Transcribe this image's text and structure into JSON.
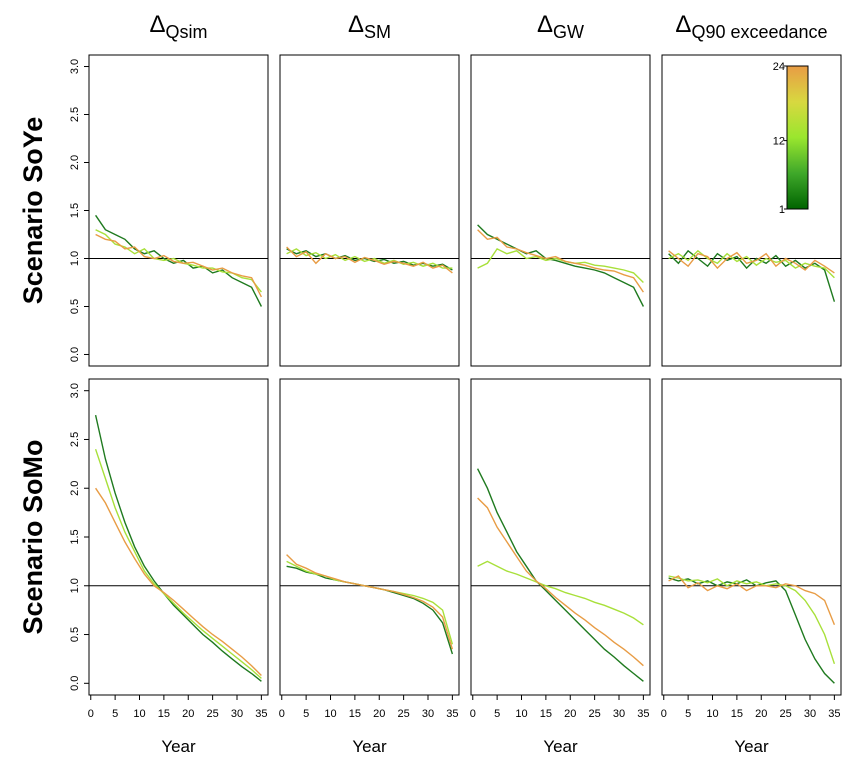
{
  "chart_data": [
    {
      "type": "line",
      "title": "Δ",
      "title_sub": "Qsim",
      "ylabel": "Scenario SoYe",
      "x": [
        1,
        3,
        5,
        7,
        9,
        11,
        13,
        15,
        17,
        19,
        21,
        23,
        25,
        27,
        29,
        31,
        33,
        35
      ],
      "xlim": [
        -0.36,
        36.36
      ],
      "ylim": [
        -0.12,
        3.12
      ],
      "yticks": [
        {
          "value": 0,
          "label": "0.0"
        },
        0.5,
        {
          "value": 1,
          "label": "1.0"
        },
        1.5,
        {
          "value": 2,
          "label": "2.0"
        },
        2.5,
        {
          "value": 3,
          "label": "3.0"
        }
      ],
      "hline": 1,
      "series": [
        {
          "color": "#1f7a1f",
          "values": [
            1.45,
            1.3,
            1.25,
            1.2,
            1.1,
            1.05,
            1.08,
            1.0,
            0.95,
            0.98,
            0.9,
            0.92,
            0.85,
            0.88,
            0.8,
            0.75,
            0.7,
            0.5
          ]
        },
        {
          "color": "#a8e03a",
          "values": [
            1.3,
            1.25,
            1.15,
            1.12,
            1.05,
            1.1,
            1.0,
            0.98,
            1.0,
            0.95,
            0.93,
            0.9,
            0.9,
            0.86,
            0.85,
            0.8,
            0.78,
            0.65
          ]
        },
        {
          "color": "#e89c45",
          "values": [
            1.25,
            1.2,
            1.18,
            1.1,
            1.12,
            1.02,
            1.0,
            1.03,
            0.97,
            0.95,
            0.96,
            0.92,
            0.88,
            0.9,
            0.85,
            0.82,
            0.8,
            0.6
          ]
        }
      ]
    },
    {
      "type": "line",
      "title": "Δ",
      "title_sub": "SM",
      "x": [
        1,
        3,
        5,
        7,
        9,
        11,
        13,
        15,
        17,
        19,
        21,
        23,
        25,
        27,
        29,
        31,
        33,
        35
      ],
      "xlim": [
        -0.36,
        36.36
      ],
      "ylim": [
        -0.12,
        3.12
      ],
      "hline": 1,
      "series": [
        {
          "color": "#1f7a1f",
          "values": [
            1.1,
            1.05,
            1.08,
            1.02,
            1.05,
            1.0,
            1.03,
            0.98,
            1.0,
            0.97,
            0.99,
            0.95,
            0.97,
            0.93,
            0.95,
            0.92,
            0.94,
            0.88
          ]
        },
        {
          "color": "#a8e03a",
          "values": [
            1.05,
            1.1,
            1.03,
            1.06,
            1.0,
            1.04,
            0.98,
            1.02,
            0.97,
            1.0,
            0.95,
            0.98,
            0.94,
            0.96,
            0.92,
            0.95,
            0.9,
            0.9
          ]
        },
        {
          "color": "#e89c45",
          "values": [
            1.12,
            1.02,
            1.07,
            0.95,
            1.05,
            1.0,
            1.02,
            0.96,
            1.01,
            0.98,
            0.94,
            0.97,
            0.95,
            0.92,
            0.96,
            0.9,
            0.93,
            0.85
          ]
        }
      ]
    },
    {
      "type": "line",
      "title": "Δ",
      "title_sub": "GW",
      "x": [
        1,
        3,
        5,
        7,
        9,
        11,
        13,
        15,
        17,
        19,
        21,
        23,
        25,
        27,
        29,
        31,
        33,
        35
      ],
      "xlim": [
        -0.36,
        36.36
      ],
      "ylim": [
        -0.12,
        3.12
      ],
      "hline": 1,
      "series": [
        {
          "color": "#1f7a1f",
          "values": [
            1.35,
            1.25,
            1.2,
            1.15,
            1.1,
            1.05,
            1.08,
            1.0,
            0.98,
            0.95,
            0.92,
            0.9,
            0.88,
            0.85,
            0.8,
            0.75,
            0.7,
            0.5
          ]
        },
        {
          "color": "#a8e03a",
          "values": [
            0.9,
            0.95,
            1.1,
            1.05,
            1.08,
            1.0,
            1.02,
            0.98,
            1.0,
            0.97,
            0.95,
            0.96,
            0.93,
            0.92,
            0.9,
            0.88,
            0.85,
            0.75
          ]
        },
        {
          "color": "#e89c45",
          "values": [
            1.3,
            1.2,
            1.22,
            1.12,
            1.1,
            1.06,
            1.03,
            1.0,
            1.02,
            0.97,
            0.95,
            0.93,
            0.9,
            0.88,
            0.87,
            0.83,
            0.8,
            0.65
          ]
        }
      ]
    },
    {
      "type": "line",
      "title": "Δ",
      "title_sub": "Q90 exceedance",
      "x": [
        1,
        3,
        5,
        7,
        9,
        11,
        13,
        15,
        17,
        19,
        21,
        23,
        25,
        27,
        29,
        31,
        33,
        35
      ],
      "xlim": [
        -0.36,
        36.36
      ],
      "ylim": [
        -0.12,
        3.12
      ],
      "hline": 1,
      "colorbar": {
        "lim": [
          1,
          24
        ],
        "ticks": [
          1,
          12,
          24
        ],
        "colors": [
          "#006400",
          "#3fa82a",
          "#9ae62e",
          "#d8d840",
          "#e89c45"
        ]
      },
      "series": [
        {
          "color": "#1f7a1f",
          "values": [
            1.05,
            0.95,
            1.08,
            1.0,
            0.92,
            1.05,
            0.98,
            1.02,
            0.9,
            1.0,
            0.95,
            1.03,
            0.92,
            0.98,
            0.9,
            0.95,
            0.88,
            0.55
          ]
        },
        {
          "color": "#a8e03a",
          "values": [
            1.0,
            1.05,
            0.98,
            1.08,
            1.0,
            0.95,
            1.05,
            0.97,
            1.02,
            0.93,
            1.0,
            0.96,
            0.98,
            0.9,
            0.95,
            0.92,
            0.9,
            0.8
          ]
        },
        {
          "color": "#e89c45",
          "values": [
            1.08,
            1.0,
            0.92,
            1.05,
            1.02,
            0.9,
            1.0,
            1.06,
            0.95,
            0.98,
            1.05,
            0.92,
            1.0,
            0.95,
            0.88,
            0.98,
            0.92,
            0.85
          ]
        }
      ]
    },
    {
      "type": "line",
      "ylabel": "Scenario SoMo",
      "xlabel": "Year",
      "x": [
        1,
        3,
        5,
        7,
        9,
        11,
        13,
        15,
        17,
        19,
        21,
        23,
        25,
        27,
        29,
        31,
        33,
        35
      ],
      "xlim": [
        -0.36,
        36.36
      ],
      "ylim": [
        -0.12,
        3.12
      ],
      "yticks": [
        {
          "value": 0,
          "label": "0.0"
        },
        0.5,
        {
          "value": 1,
          "label": "1.0"
        },
        1.5,
        {
          "value": 2,
          "label": "2.0"
        },
        2.5,
        {
          "value": 3,
          "label": "3.0"
        }
      ],
      "xticks": [
        0,
        5,
        10,
        15,
        20,
        25,
        30,
        35
      ],
      "hline": 1,
      "series": [
        {
          "color": "#1f7a1f",
          "values": [
            2.75,
            2.3,
            1.95,
            1.65,
            1.4,
            1.2,
            1.05,
            0.92,
            0.8,
            0.7,
            0.6,
            0.5,
            0.42,
            0.33,
            0.25,
            0.17,
            0.1,
            0.02
          ]
        },
        {
          "color": "#a8e03a",
          "values": [
            2.4,
            2.1,
            1.8,
            1.55,
            1.35,
            1.15,
            1.02,
            0.92,
            0.82,
            0.72,
            0.63,
            0.54,
            0.46,
            0.38,
            0.3,
            0.22,
            0.14,
            0.05
          ]
        },
        {
          "color": "#e89c45",
          "values": [
            2.0,
            1.85,
            1.65,
            1.45,
            1.28,
            1.12,
            1.0,
            0.93,
            0.85,
            0.76,
            0.67,
            0.58,
            0.5,
            0.43,
            0.35,
            0.27,
            0.18,
            0.08
          ]
        }
      ]
    },
    {
      "type": "line",
      "xlabel": "Year",
      "x": [
        1,
        3,
        5,
        7,
        9,
        11,
        13,
        15,
        17,
        19,
        21,
        23,
        25,
        27,
        29,
        31,
        33,
        35
      ],
      "xlim": [
        -0.36,
        36.36
      ],
      "ylim": [
        -0.12,
        3.12
      ],
      "xticks": [
        0,
        5,
        10,
        15,
        20,
        25,
        30,
        35
      ],
      "hline": 1,
      "series": [
        {
          "color": "#1f7a1f",
          "values": [
            1.2,
            1.18,
            1.14,
            1.12,
            1.08,
            1.06,
            1.04,
            1.02,
            1.0,
            0.98,
            0.96,
            0.93,
            0.9,
            0.87,
            0.82,
            0.75,
            0.62,
            0.3
          ]
        },
        {
          "color": "#a8e03a",
          "values": [
            1.25,
            1.2,
            1.15,
            1.12,
            1.1,
            1.06,
            1.04,
            1.02,
            1.0,
            0.98,
            0.96,
            0.94,
            0.92,
            0.9,
            0.87,
            0.83,
            0.75,
            0.4
          ]
        },
        {
          "color": "#e89c45",
          "values": [
            1.32,
            1.22,
            1.18,
            1.13,
            1.1,
            1.07,
            1.04,
            1.02,
            1.0,
            0.98,
            0.96,
            0.94,
            0.91,
            0.88,
            0.84,
            0.78,
            0.68,
            0.35
          ]
        }
      ]
    },
    {
      "type": "line",
      "xlabel": "Year",
      "x": [
        1,
        3,
        5,
        7,
        9,
        11,
        13,
        15,
        17,
        19,
        21,
        23,
        25,
        27,
        29,
        31,
        33,
        35
      ],
      "xlim": [
        -0.36,
        36.36
      ],
      "ylim": [
        -0.12,
        3.12
      ],
      "xticks": [
        0,
        5,
        10,
        15,
        20,
        25,
        30,
        35
      ],
      "hline": 1,
      "series": [
        {
          "color": "#1f7a1f",
          "values": [
            2.2,
            2.0,
            1.75,
            1.55,
            1.35,
            1.2,
            1.05,
            0.95,
            0.85,
            0.75,
            0.65,
            0.55,
            0.45,
            0.35,
            0.27,
            0.18,
            0.1,
            0.02
          ]
        },
        {
          "color": "#a8e03a",
          "values": [
            1.2,
            1.25,
            1.2,
            1.15,
            1.12,
            1.08,
            1.04,
            1.0,
            0.97,
            0.93,
            0.9,
            0.87,
            0.83,
            0.8,
            0.76,
            0.72,
            0.67,
            0.6
          ]
        },
        {
          "color": "#e89c45",
          "values": [
            1.9,
            1.8,
            1.6,
            1.45,
            1.3,
            1.15,
            1.05,
            0.97,
            0.88,
            0.8,
            0.72,
            0.65,
            0.57,
            0.5,
            0.42,
            0.35,
            0.27,
            0.18
          ]
        }
      ]
    },
    {
      "type": "line",
      "xlabel": "Year",
      "x": [
        1,
        3,
        5,
        7,
        9,
        11,
        13,
        15,
        17,
        19,
        21,
        23,
        25,
        27,
        29,
        31,
        33,
        35
      ],
      "xlim": [
        -0.36,
        36.36
      ],
      "ylim": [
        -0.12,
        3.12
      ],
      "xticks": [
        0,
        5,
        10,
        15,
        20,
        25,
        30,
        35
      ],
      "hline": 1,
      "series": [
        {
          "color": "#1f7a1f",
          "values": [
            1.08,
            1.05,
            1.07,
            1.02,
            1.05,
            1.0,
            1.04,
            1.02,
            1.06,
            1.0,
            1.03,
            1.05,
            0.95,
            0.7,
            0.45,
            0.25,
            0.1,
            0.0
          ]
        },
        {
          "color": "#a8e03a",
          "values": [
            1.1,
            1.08,
            1.05,
            1.06,
            1.03,
            1.07,
            1.0,
            1.05,
            1.02,
            1.04,
            1.0,
            1.02,
            1.0,
            0.95,
            0.85,
            0.7,
            0.5,
            0.2
          ]
        },
        {
          "color": "#e89c45",
          "values": [
            1.05,
            1.1,
            0.98,
            1.03,
            0.95,
            1.0,
            0.97,
            1.02,
            0.95,
            1.0,
            1.0,
            0.98,
            1.02,
            1.0,
            0.95,
            0.92,
            0.85,
            0.6
          ]
        }
      ]
    }
  ]
}
